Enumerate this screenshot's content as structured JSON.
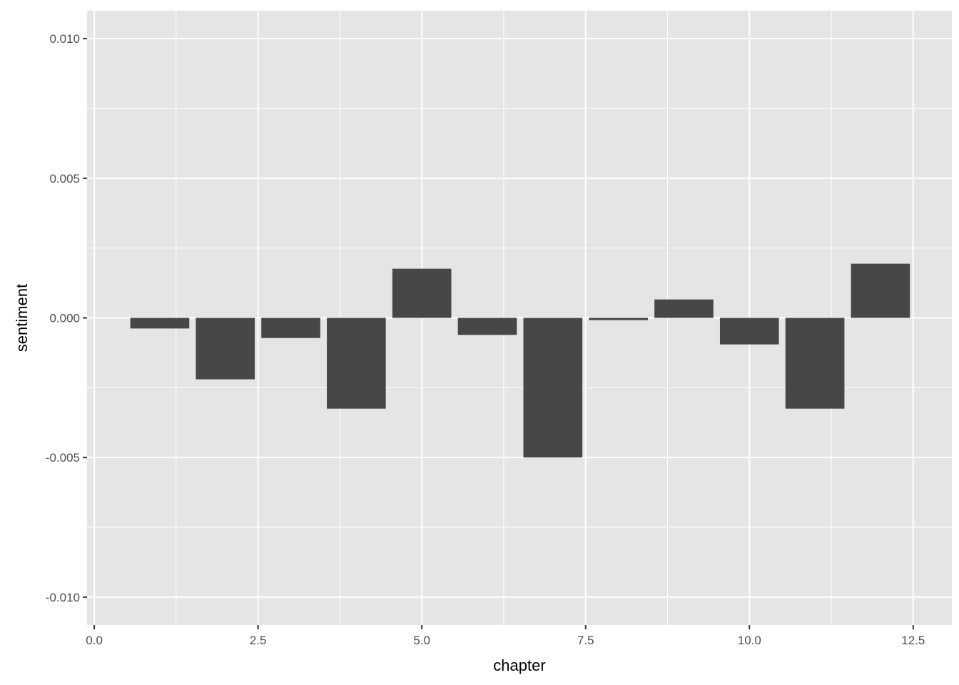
{
  "chart_data": {
    "type": "bar",
    "title": "",
    "xlabel": "chapter",
    "ylabel": "sentiment",
    "x": [
      1,
      2,
      3,
      4,
      5,
      6,
      7,
      8,
      9,
      10,
      11,
      12
    ],
    "values": [
      -0.00038,
      -0.0022,
      -0.00072,
      -0.00325,
      0.00176,
      -0.00061,
      -0.005,
      -8e-05,
      0.00066,
      -0.00095,
      -0.00325,
      0.00194
    ],
    "bar_width": 0.9,
    "xlim": [
      -0.11,
      13.09
    ],
    "ylim": [
      -0.011,
      0.011
    ],
    "x_ticks": [
      0,
      2.5,
      5,
      7.5,
      10,
      12.5
    ],
    "x_tick_labels": [
      "0.0",
      "2.5",
      "5.0",
      "7.5",
      "10.0",
      "12.5"
    ],
    "y_ticks": [
      0.01,
      0.005,
      0,
      -0.005,
      -0.01
    ],
    "y_tick_labels": [
      "0.010",
      "0.005",
      "0.000",
      "-0.005",
      "-0.010"
    ],
    "grid": true,
    "colors": {
      "bar": "#474747",
      "panel": "#e5e5e5",
      "grid": "#ffffff"
    }
  }
}
